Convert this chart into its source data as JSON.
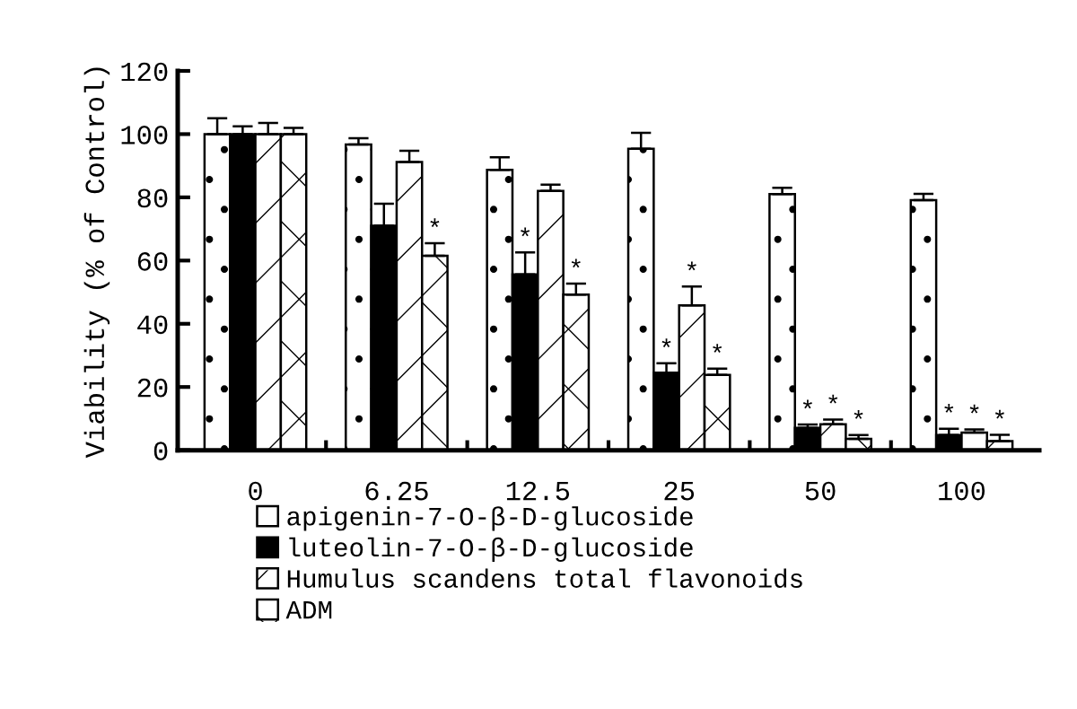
{
  "chart_data": {
    "type": "bar",
    "ylabel": "Viability (% of Control)",
    "categories": [
      "0",
      "6.25",
      "12.5",
      "25",
      "50",
      "100"
    ],
    "ylim": [
      0,
      120
    ],
    "yticks": [
      0,
      20,
      40,
      60,
      80,
      100,
      120
    ],
    "grid": false,
    "legend": "bottom",
    "series": [
      {
        "name": "apigenin-7-O-β-D-glucoside",
        "color": "#ffffff",
        "values": [
          100,
          96.7,
          88.7,
          95.4,
          81,
          79.1
        ],
        "errors": [
          [
            100,
            105
          ],
          [
            96.7,
            98.7
          ],
          [
            88.7,
            92.7
          ],
          [
            95.4,
            100.4
          ],
          [
            81,
            83
          ],
          [
            79.1,
            81.1
          ]
        ]
      },
      {
        "name": "luteolin-7-O-β-D-glucoside",
        "color": "#000000",
        "values": [
          100,
          71,
          55.6,
          24.5,
          7.1,
          4.8
        ],
        "errors": [
          [
            100,
            102.5
          ],
          [
            71,
            78
          ],
          [
            55.6,
            62.6
          ],
          [
            24.5,
            27.5
          ],
          [
            7.1,
            8.1
          ],
          [
            4.8,
            6.8
          ]
        ],
        "value_labels": [
          null,
          null,
          "*",
          "*",
          "*",
          "*"
        ]
      },
      {
        "name": "Humulus scandens total flavonoids",
        "color": "#ffffff",
        "values": [
          100,
          91.2,
          82,
          45.8,
          8.2,
          5.6
        ],
        "errors": [
          [
            100,
            103.5
          ],
          [
            91.2,
            94.7
          ],
          [
            82,
            84
          ],
          [
            45.8,
            51.8
          ],
          [
            8.2,
            9.7
          ],
          [
            5.6,
            6.6
          ]
        ],
        "value_labels": [
          null,
          null,
          null,
          "*",
          "*",
          "*"
        ]
      },
      {
        "name": "ADM",
        "color": "#ffffff",
        "values": [
          100,
          61.5,
          49.2,
          23.8,
          3.6,
          2.9
        ],
        "errors": [
          [
            100,
            102
          ],
          [
            61.5,
            65.5
          ],
          [
            49.2,
            52.7
          ],
          [
            23.8,
            25.8
          ],
          [
            3.6,
            4.8
          ],
          [
            2.9,
            4.9
          ]
        ],
        "value_labels": [
          null,
          "*",
          "*",
          "*",
          "*",
          "*"
        ]
      }
    ]
  }
}
